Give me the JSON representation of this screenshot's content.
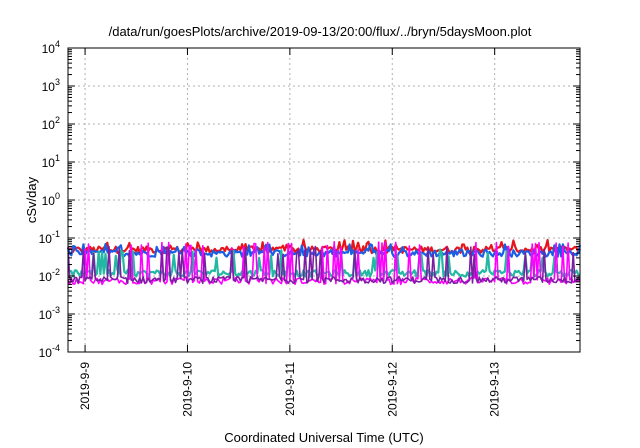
{
  "chart_data": {
    "type": "line",
    "title": "/data/run/goesPlots/archive/2019-09-13/20:00/flux/../bryn/5daysMoon.plot",
    "xlabel": "Coordinated Universal Time (UTC)",
    "ylabel": "cSv/day",
    "yscale": "log",
    "ylim": [
      0.0001,
      10000
    ],
    "y_ticks": [
      {
        "base": "10",
        "exp": "-4"
      },
      {
        "base": "10",
        "exp": "-3"
      },
      {
        "base": "10",
        "exp": "-2"
      },
      {
        "base": "10",
        "exp": "-1"
      },
      {
        "base": "10",
        "exp": "0"
      },
      {
        "base": "10",
        "exp": "1"
      },
      {
        "base": "10",
        "exp": "2"
      },
      {
        "base": "10",
        "exp": "3"
      },
      {
        "base": "10",
        "exp": "4"
      }
    ],
    "xlim": [
      "2019-09-08T20:00",
      "2019-09-13T20:00"
    ],
    "x_ticks": [
      "2019-9-9",
      "2019-9-10",
      "2019-9-11",
      "2019-9-12",
      "2019-9-13"
    ],
    "grid": true,
    "legend": "none",
    "series": [
      {
        "color": "#e8141c",
        "level": 0.05,
        "spike_level": 0.09
      },
      {
        "color": "#1a5ee6",
        "level": 0.04,
        "spike_level": 0.07
      },
      {
        "color": "#22b8a4",
        "level": 0.012,
        "spike_level": 0.05
      },
      {
        "color": "#ff00ff",
        "level": 0.0075,
        "spike_level": 0.08
      },
      {
        "color": "#7a1fa2",
        "level": 0.008,
        "spike_level": 0.06
      }
    ]
  }
}
